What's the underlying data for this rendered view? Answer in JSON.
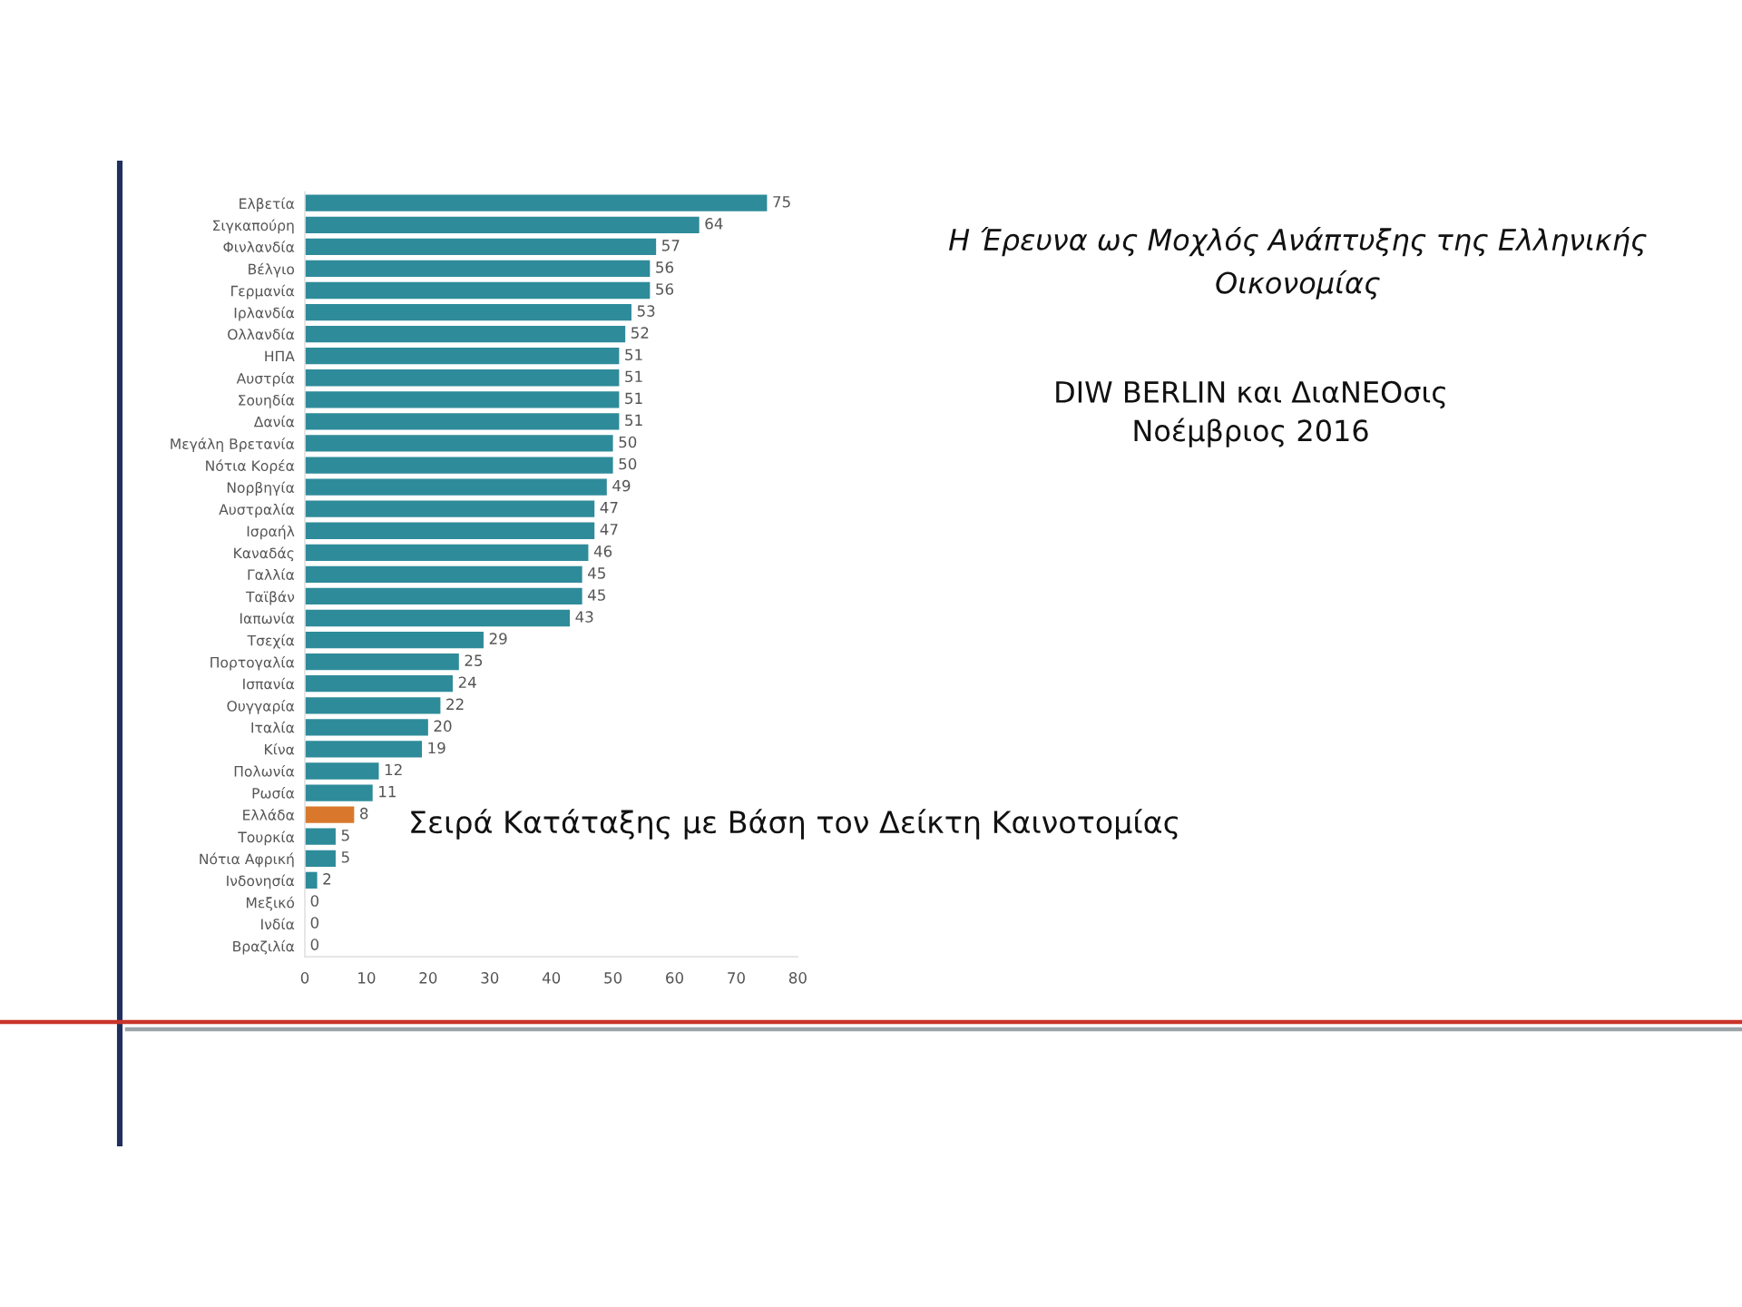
{
  "chart_data": {
    "type": "bar",
    "orientation": "horizontal",
    "title": "Η Έρευνα ως Μοχλός Ανάπτυξης της Ελληνικής\nΟικονομίας",
    "subtitle": "DIW BERLIN και ΔιαΝΕΟσις\nΝοέμβριος 2016",
    "annotations": [
      "Σειρά Κατάταξης με Βάση τον Δείκτη Καινοτομίας"
    ],
    "categories": [
      "Ελβετία",
      "Σιγκαπούρη",
      "Φινλανδία",
      "Βέλγιο",
      "Γερμανία",
      "Ιρλανδία",
      "Ολλανδία",
      "ΗΠΑ",
      "Αυστρία",
      "Σουηδία",
      "Δανία",
      "Μεγάλη Βρετανία",
      "Νότια Κορέα",
      "Νορβηγία",
      "Αυστραλία",
      "Ισραήλ",
      "Καναδάς",
      "Γαλλία",
      "Ταϊβάν",
      "Ιαπωνία",
      "Τσεχία",
      "Πορτογαλία",
      "Ισπανία",
      "Ουγγαρία",
      "Ιταλία",
      "Κίνα",
      "Πολωνία",
      "Ρωσία",
      "Ελλάδα",
      "Τουρκία",
      "Νότια Αφρική",
      "Ινδονησία",
      "Μεξικό",
      "Ινδία",
      "Βραζιλία"
    ],
    "values": [
      75,
      64,
      57,
      56,
      56,
      53,
      52,
      51,
      51,
      51,
      51,
      50,
      50,
      49,
      47,
      47,
      46,
      45,
      45,
      43,
      29,
      25,
      24,
      22,
      20,
      19,
      12,
      11,
      8,
      5,
      5,
      2,
      0,
      0,
      0
    ],
    "colors": [
      "#2e8b9a",
      "#2e8b9a",
      "#2e8b9a",
      "#2e8b9a",
      "#2e8b9a",
      "#2e8b9a",
      "#2e8b9a",
      "#2e8b9a",
      "#2e8b9a",
      "#2e8b9a",
      "#2e8b9a",
      "#2e8b9a",
      "#2e8b9a",
      "#2e8b9a",
      "#2e8b9a",
      "#2e8b9a",
      "#2e8b9a",
      "#2e8b9a",
      "#2e8b9a",
      "#2e8b9a",
      "#2e8b9a",
      "#2e8b9a",
      "#2e8b9a",
      "#2e8b9a",
      "#2e8b9a",
      "#2e8b9a",
      "#2e8b9a",
      "#2e8b9a",
      "#d9782d",
      "#2e8b9a",
      "#2e8b9a",
      "#2e8b9a",
      "#2e8b9a",
      "#2e8b9a",
      "#2e8b9a"
    ],
    "xlim": [
      0,
      80
    ],
    "xticks": [
      0,
      10,
      20,
      30,
      40,
      50,
      60,
      70,
      80
    ],
    "data_labels": true
  }
}
